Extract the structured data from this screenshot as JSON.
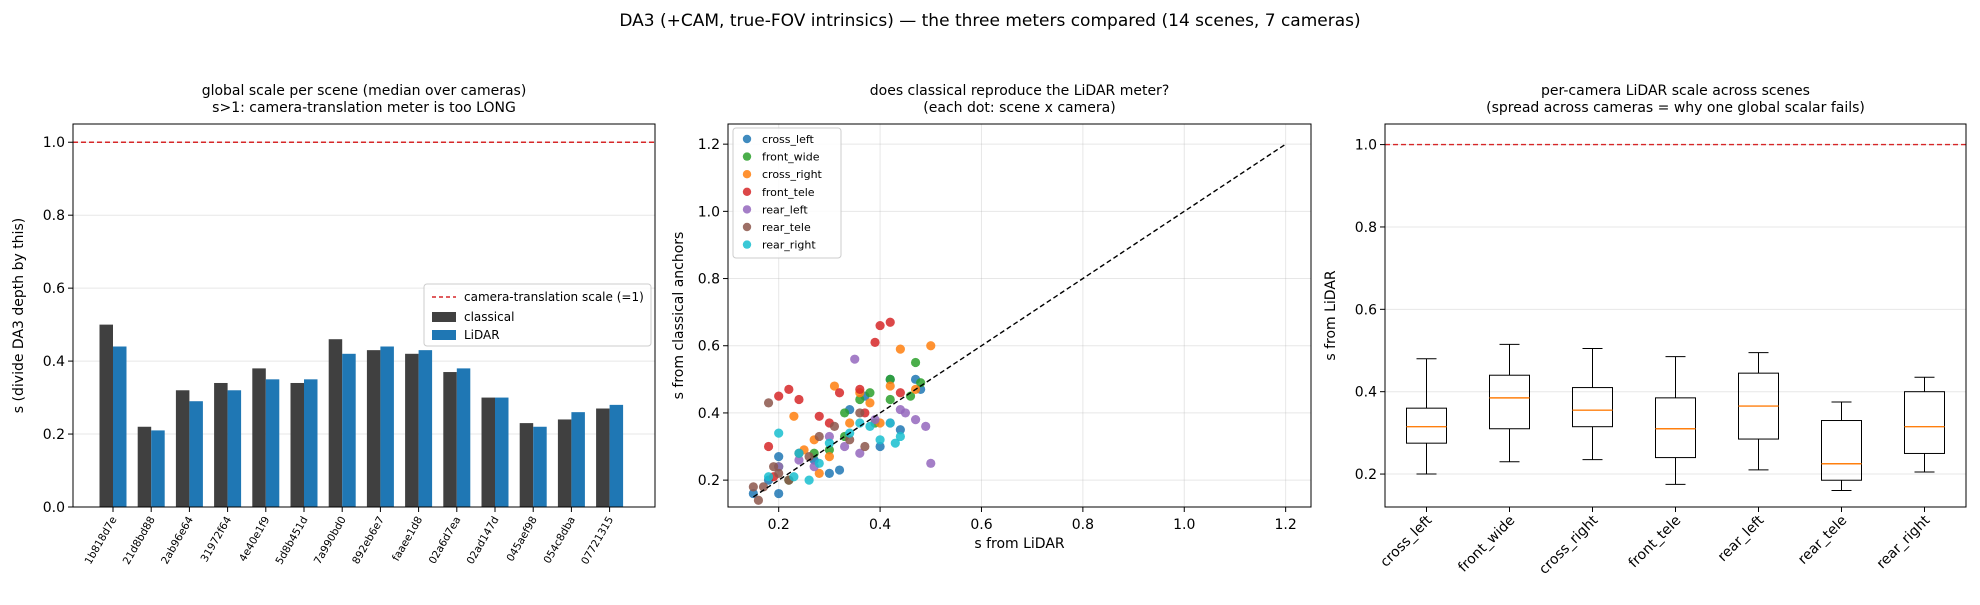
{
  "figure": {
    "suptitle": "DA3 (+CAM, true-FOV intrinsics) — the three meters compared (14 scenes, 7 cameras)"
  },
  "chart_data": [
    {
      "type": "bar",
      "title_lines": [
        "global scale per scene (median over cameras)",
        "s>1: camera-translation meter is too LONG"
      ],
      "xlabel": "",
      "ylabel": "s (divide DA3 depth by this)",
      "ylim": [
        0,
        1.05
      ],
      "yticks": [
        0.0,
        0.2,
        0.4,
        0.6,
        0.8,
        1.0
      ],
      "grid": "y",
      "legend_position": "center-right",
      "reference_line": {
        "y": 1.0,
        "label": "camera-translation scale (=1)",
        "color": "#d62728"
      },
      "categories": [
        "1b818d7e",
        "21d8bd88",
        "2ab96e64",
        "31972f64",
        "4e40e1f9",
        "5d8b451d",
        "7a990bd0",
        "892eb6e7",
        "faaee1d8",
        "02a6d7ea",
        "02ad147d",
        "045aef98",
        "054c8dba",
        "07721315"
      ],
      "series": [
        {
          "name": "classical",
          "color": "#404040",
          "values": [
            0.5,
            0.22,
            0.32,
            0.34,
            0.38,
            0.34,
            0.46,
            0.43,
            0.42,
            0.37,
            0.3,
            0.23,
            0.24,
            0.27
          ]
        },
        {
          "name": "LiDAR",
          "color": "#1f77b4",
          "values": [
            0.44,
            0.21,
            0.29,
            0.32,
            0.35,
            0.35,
            0.42,
            0.44,
            0.43,
            0.38,
            0.3,
            0.22,
            0.26,
            0.28
          ]
        }
      ]
    },
    {
      "type": "scatter",
      "title_lines": [
        "does classical reproduce the LiDAR meter?",
        "(each dot: scene x camera)"
      ],
      "xlabel": "s from LiDAR",
      "ylabel": "s from classical anchors",
      "xlim": [
        0.1,
        1.25
      ],
      "ylim": [
        0.12,
        1.26
      ],
      "xticks": [
        0.2,
        0.4,
        0.6,
        0.8,
        1.0,
        1.2
      ],
      "yticks": [
        0.2,
        0.4,
        0.6,
        0.8,
        1.0,
        1.2
      ],
      "grid": "both",
      "legend_position": "upper-left",
      "identity_line": [
        0.15,
        1.2
      ],
      "series": [
        {
          "name": "cross_left",
          "color": "#1f77b4",
          "points": [
            [
              0.15,
              0.16
            ],
            [
              0.18,
              0.2
            ],
            [
              0.2,
              0.16
            ],
            [
              0.2,
              0.27
            ],
            [
              0.27,
              0.26
            ],
            [
              0.3,
              0.22
            ],
            [
              0.32,
              0.23
            ],
            [
              0.34,
              0.41
            ],
            [
              0.37,
              0.45
            ],
            [
              0.4,
              0.3
            ],
            [
              0.42,
              0.5
            ],
            [
              0.44,
              0.35
            ],
            [
              0.47,
              0.5
            ],
            [
              0.48,
              0.47
            ]
          ]
        },
        {
          "name": "front_wide",
          "color": "#2ca02c",
          "points": [
            [
              0.2,
              0.24
            ],
            [
              0.22,
              0.2
            ],
            [
              0.27,
              0.28
            ],
            [
              0.3,
              0.29
            ],
            [
              0.33,
              0.33
            ],
            [
              0.36,
              0.44
            ],
            [
              0.38,
              0.46
            ],
            [
              0.42,
              0.5
            ],
            [
              0.42,
              0.44
            ],
            [
              0.46,
              0.45
            ],
            [
              0.47,
              0.55
            ],
            [
              0.48,
              0.49
            ],
            [
              0.33,
              0.4
            ],
            [
              0.39,
              0.37
            ]
          ]
        },
        {
          "name": "cross_right",
          "color": "#ff7f0e",
          "points": [
            [
              0.23,
              0.39
            ],
            [
              0.25,
              0.29
            ],
            [
              0.28,
              0.22
            ],
            [
              0.3,
              0.27
            ],
            [
              0.31,
              0.48
            ],
            [
              0.34,
              0.37
            ],
            [
              0.36,
              0.46
            ],
            [
              0.38,
              0.43
            ],
            [
              0.4,
              0.37
            ],
            [
              0.42,
              0.48
            ],
            [
              0.44,
              0.59
            ],
            [
              0.47,
              0.47
            ],
            [
              0.5,
              0.6
            ],
            [
              0.27,
              0.32
            ]
          ]
        },
        {
          "name": "front_tele",
          "color": "#d62728",
          "points": [
            [
              0.18,
              0.3
            ],
            [
              0.2,
              0.45
            ],
            [
              0.22,
              0.47
            ],
            [
              0.24,
              0.44
            ],
            [
              0.28,
              0.39
            ],
            [
              0.3,
              0.37
            ],
            [
              0.32,
              0.46
            ],
            [
              0.36,
              0.47
            ],
            [
              0.39,
              0.61
            ],
            [
              0.4,
              0.66
            ],
            [
              0.42,
              0.67
            ],
            [
              0.44,
              0.46
            ],
            [
              0.37,
              0.4
            ],
            [
              0.19,
              0.21
            ]
          ]
        },
        {
          "name": "rear_left",
          "color": "#9467bd",
          "points": [
            [
              0.2,
              0.24
            ],
            [
              0.24,
              0.26
            ],
            [
              0.27,
              0.24
            ],
            [
              0.3,
              0.33
            ],
            [
              0.33,
              0.3
            ],
            [
              0.35,
              0.56
            ],
            [
              0.36,
              0.28
            ],
            [
              0.39,
              0.38
            ],
            [
              0.42,
              0.37
            ],
            [
              0.44,
              0.41
            ],
            [
              0.45,
              0.4
            ],
            [
              0.47,
              0.38
            ],
            [
              0.49,
              0.36
            ],
            [
              0.5,
              0.25
            ]
          ]
        },
        {
          "name": "rear_tele",
          "color": "#8c564b",
          "points": [
            [
              0.15,
              0.18
            ],
            [
              0.16,
              0.14
            ],
            [
              0.17,
              0.18
            ],
            [
              0.18,
              0.43
            ],
            [
              0.19,
              0.24
            ],
            [
              0.2,
              0.22
            ],
            [
              0.22,
              0.2
            ],
            [
              0.24,
              0.28
            ],
            [
              0.26,
              0.27
            ],
            [
              0.28,
              0.33
            ],
            [
              0.31,
              0.36
            ],
            [
              0.34,
              0.32
            ],
            [
              0.36,
              0.4
            ],
            [
              0.37,
              0.3
            ]
          ]
        },
        {
          "name": "rear_right",
          "color": "#17becf",
          "points": [
            [
              0.18,
              0.21
            ],
            [
              0.2,
              0.34
            ],
            [
              0.23,
              0.21
            ],
            [
              0.26,
              0.2
            ],
            [
              0.28,
              0.25
            ],
            [
              0.3,
              0.31
            ],
            [
              0.34,
              0.34
            ],
            [
              0.36,
              0.37
            ],
            [
              0.38,
              0.36
            ],
            [
              0.4,
              0.32
            ],
            [
              0.42,
              0.37
            ],
            [
              0.43,
              0.31
            ],
            [
              0.44,
              0.33
            ],
            [
              0.24,
              0.28
            ]
          ]
        }
      ]
    },
    {
      "type": "box",
      "title_lines": [
        "per-camera LiDAR scale across scenes",
        "(spread across cameras = why one global scalar fails)"
      ],
      "xlabel": "",
      "ylabel": "s from LiDAR",
      "ylim": [
        0.12,
        1.05
      ],
      "yticks": [
        0.2,
        0.4,
        0.6,
        0.8,
        1.0
      ],
      "grid": "y",
      "reference_line": {
        "y": 1.0,
        "color": "#d62728"
      },
      "median_color": "#ff7f0e",
      "boxes": [
        {
          "label": "cross_left",
          "whislo": 0.2,
          "q1": 0.275,
          "med": 0.315,
          "q3": 0.36,
          "whishi": 0.48
        },
        {
          "label": "front_wide",
          "whislo": 0.23,
          "q1": 0.31,
          "med": 0.385,
          "q3": 0.44,
          "whishi": 0.515
        },
        {
          "label": "cross_right",
          "whislo": 0.235,
          "q1": 0.315,
          "med": 0.355,
          "q3": 0.41,
          "whishi": 0.505
        },
        {
          "label": "front_tele",
          "whislo": 0.175,
          "q1": 0.24,
          "med": 0.31,
          "q3": 0.385,
          "whishi": 0.485
        },
        {
          "label": "rear_left",
          "whislo": 0.21,
          "q1": 0.285,
          "med": 0.365,
          "q3": 0.445,
          "whishi": 0.495
        },
        {
          "label": "rear_tele",
          "whislo": 0.16,
          "q1": 0.185,
          "med": 0.225,
          "q3": 0.33,
          "whishi": 0.375
        },
        {
          "label": "rear_right",
          "whislo": 0.205,
          "q1": 0.25,
          "med": 0.315,
          "q3": 0.4,
          "whishi": 0.435
        }
      ]
    }
  ]
}
